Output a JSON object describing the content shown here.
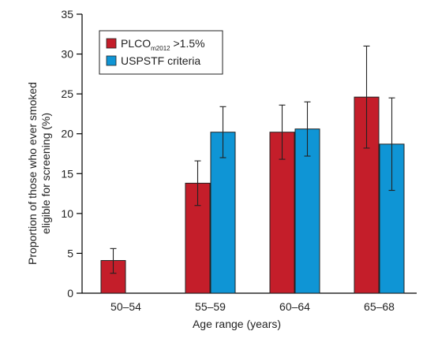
{
  "chart_data": {
    "type": "bar",
    "title": "",
    "xlabel": "Age range (years)",
    "ylabel_lines": [
      "Proportion of those who ever smoked",
      "eligible for screening (%)"
    ],
    "categories": [
      "50–54",
      "55–59",
      "60–64",
      "65–68"
    ],
    "ylim": [
      0,
      35
    ],
    "yticks": [
      0,
      5,
      10,
      15,
      20,
      25,
      30,
      35
    ],
    "legend_position": "top-left",
    "series": [
      {
        "name": "PLCOm2012 >1.5%",
        "legend_main": "PLCO",
        "legend_sub": "m2012",
        "legend_rest": " >1.5%",
        "color": "#c41e2a",
        "values": [
          4.1,
          13.8,
          20.2,
          24.6
        ],
        "err_low": [
          2.5,
          11.0,
          16.8,
          18.2
        ],
        "err_high": [
          5.6,
          16.6,
          23.6,
          31.0
        ]
      },
      {
        "name": "USPSTF criteria",
        "legend_main": "USPSTF criteria",
        "legend_sub": "",
        "legend_rest": "",
        "color": "#0f95d5",
        "values": [
          null,
          20.2,
          20.6,
          18.7
        ],
        "err_low": [
          null,
          17.0,
          17.2,
          12.9
        ],
        "err_high": [
          null,
          23.4,
          24.0,
          24.5
        ]
      }
    ]
  }
}
